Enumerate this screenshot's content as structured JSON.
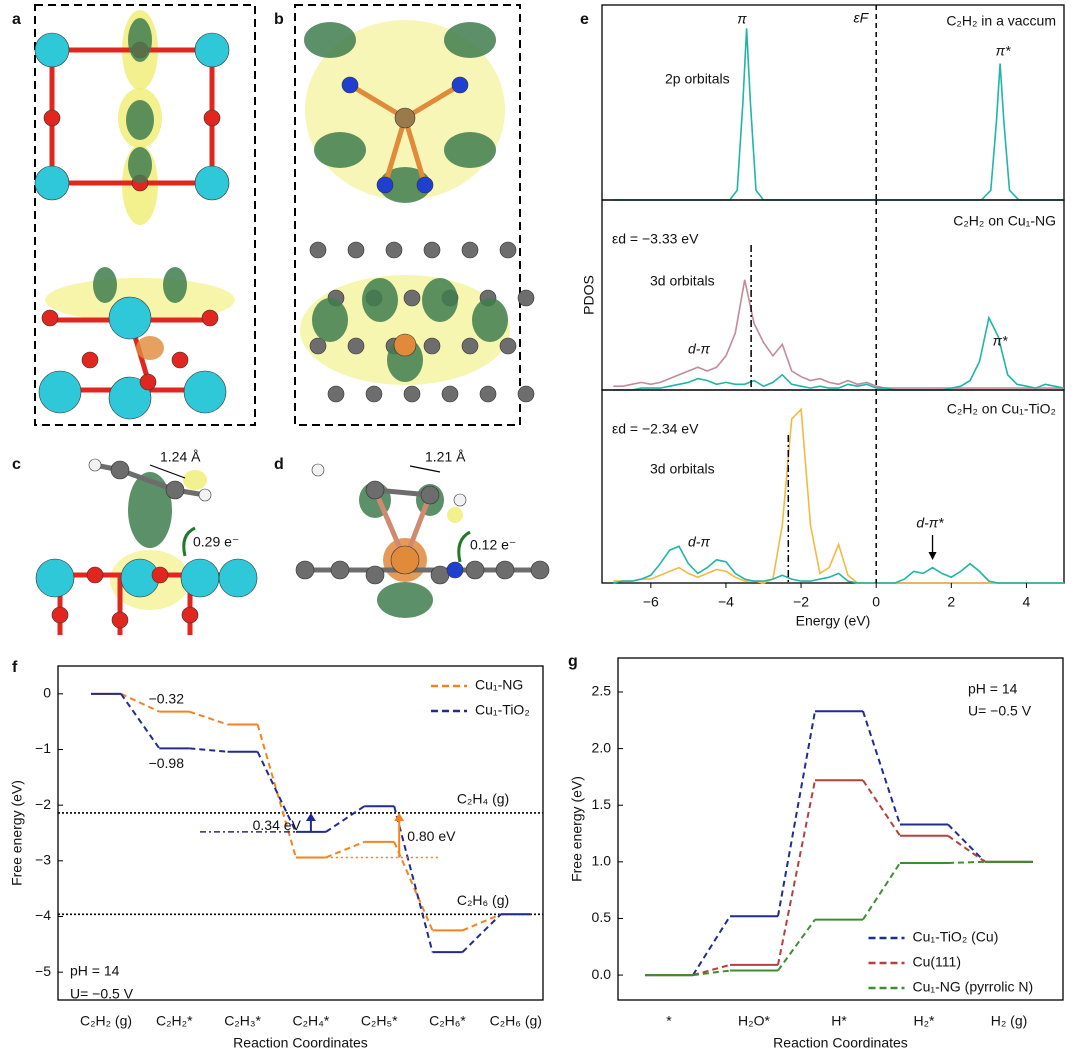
{
  "panel_labels": [
    "a",
    "b",
    "c",
    "d",
    "e",
    "f",
    "g"
  ],
  "structure_annotations": {
    "c_bond": "1.24 Å",
    "c_charge": "0.29 e⁻",
    "d_bond": "1.21 Å",
    "d_charge": "0.12 e⁻"
  },
  "chart_data": [
    {
      "type": "line",
      "xlim": [
        -7.3,
        5
      ],
      "ylim": [
        0,
        1
      ],
      "x": [
        -7,
        -3.9,
        -3.7,
        -3.55,
        -3.45,
        -3.35,
        -3.2,
        -3.0,
        2.8,
        3.05,
        3.2,
        3.3,
        3.4,
        3.55,
        3.8,
        5
      ],
      "series": [
        {
          "color": "#1fb5a8",
          "values": [
            0,
            0,
            0.05,
            0.5,
            0.88,
            0.5,
            0.05,
            0,
            0,
            0.05,
            0.4,
            0.7,
            0.4,
            0.05,
            0,
            0
          ]
        }
      ],
      "vlines": [
        {
          "x": 0,
          "style": "dashed",
          "label": "εF"
        }
      ],
      "annotations": [
        "π",
        "2p orbitals",
        "C₂H₂ in a vaccum",
        "π*"
      ]
    },
    {
      "type": "line",
      "xlim": [
        -7.3,
        5
      ],
      "ylim": [
        0,
        1
      ],
      "ylabel": "PDOS",
      "x": [
        -7,
        -6.75,
        -6.5,
        -6.25,
        -6,
        -5.75,
        -5.5,
        -5.25,
        -5,
        -4.75,
        -4.5,
        -4.25,
        -4,
        -3.75,
        -3.5,
        -3.25,
        -3,
        -2.75,
        -2.5,
        -2.25,
        -2,
        -1.75,
        -1.5,
        -1.25,
        -1,
        -0.75,
        -0.5,
        -0.25,
        0,
        0.25,
        0.5,
        0.75,
        1,
        1.25,
        1.5,
        1.75,
        2,
        2.25,
        2.5,
        2.75,
        3,
        3.25,
        3.5,
        3.75,
        4,
        4.25,
        4.5,
        4.75,
        5
      ],
      "series": [
        {
          "color": "#c48a9a",
          "values": [
            0.02,
            0.02,
            0.03,
            0.04,
            0.03,
            0.04,
            0.06,
            0.08,
            0.1,
            0.12,
            0.1,
            0.12,
            0.18,
            0.3,
            0.58,
            0.35,
            0.25,
            0.18,
            0.24,
            0.1,
            0.07,
            0.05,
            0.06,
            0.04,
            0.03,
            0.05,
            0.03,
            0.04,
            0.02,
            0.01,
            0.01,
            0.01,
            0.01,
            0.01,
            0.01,
            0.01,
            0.01,
            0.01,
            0.01,
            0.01,
            0.01,
            0.01,
            0.01,
            0.01,
            0.01,
            0.01,
            0.01,
            0.01,
            0.01
          ]
        },
        {
          "color": "#1fb5a8",
          "values": [
            0,
            0,
            0,
            0.01,
            0.01,
            0.01,
            0.02,
            0.03,
            0.04,
            0.06,
            0.05,
            0.03,
            0.04,
            0.03,
            0.03,
            0.05,
            0.02,
            0.04,
            0.08,
            0.03,
            0.02,
            0.01,
            0.02,
            0.01,
            0.01,
            0.03,
            0.02,
            0.03,
            0.01,
            0.01,
            0,
            0,
            0,
            0,
            0,
            0,
            0.01,
            0.02,
            0.05,
            0.15,
            0.38,
            0.28,
            0.08,
            0.03,
            0.02,
            0.01,
            0.03,
            0.02,
            0.01
          ]
        }
      ],
      "vlines": [
        {
          "x": -3.33,
          "style": "dashdot"
        },
        {
          "x": 0,
          "style": "dashed"
        }
      ],
      "annotations": [
        "C₂H₂ on Cu₁-NG",
        "εd = −3.33 eV",
        "3d orbitals",
        "d-π",
        "π*"
      ]
    },
    {
      "type": "line",
      "xlim": [
        -7.3,
        5
      ],
      "ylim": [
        0,
        1
      ],
      "xlabel": "Energy (eV)",
      "xticks": [
        {
          "value": -6,
          "label": "−6"
        },
        {
          "value": -4,
          "label": "−4"
        },
        {
          "value": -2,
          "label": "−2"
        },
        0,
        2,
        4
      ],
      "x": [
        -7,
        -6.75,
        -6.5,
        -6.25,
        -6,
        -5.75,
        -5.5,
        -5.25,
        -5,
        -4.75,
        -4.5,
        -4.25,
        -4,
        -3.75,
        -3.5,
        -3.25,
        -3,
        -2.75,
        -2.5,
        -2.25,
        -2,
        -1.75,
        -1.5,
        -1.25,
        -1,
        -0.75,
        -0.5,
        -0.25,
        0,
        0.25,
        0.5,
        0.75,
        1,
        1.25,
        1.5,
        1.75,
        2,
        2.25,
        2.5,
        2.75,
        3,
        3.25,
        3.5,
        3.75,
        4,
        4.25,
        4.5,
        4.75,
        5
      ],
      "series": [
        {
          "color": "#f5b942",
          "values": [
            0.01,
            0.01,
            0.01,
            0.02,
            0.02,
            0.04,
            0.06,
            0.08,
            0.05,
            0.03,
            0.05,
            0.07,
            0.06,
            0.03,
            0.01,
            0.01,
            0,
            0.02,
            0.3,
            0.85,
            0.9,
            0.3,
            0.05,
            0.08,
            0.2,
            0.04,
            0,
            0,
            0,
            0,
            0,
            0,
            0,
            0,
            0,
            0,
            0,
            0,
            0,
            0,
            0,
            0,
            0,
            0,
            0,
            0,
            0,
            0,
            0
          ]
        },
        {
          "color": "#1fb5a8",
          "values": [
            0,
            0.01,
            0.01,
            0.02,
            0.04,
            0.1,
            0.17,
            0.19,
            0.1,
            0.05,
            0.08,
            0.12,
            0.11,
            0.05,
            0.02,
            0.01,
            0.01,
            0.02,
            0.04,
            0.02,
            0.01,
            0.01,
            0.02,
            0.03,
            0.05,
            0.01,
            0,
            0,
            0,
            0,
            0,
            0.02,
            0.06,
            0.05,
            0.08,
            0.05,
            0.03,
            0.06,
            0.1,
            0.06,
            0.01,
            0,
            0,
            0,
            0,
            0,
            0,
            0,
            0
          ]
        }
      ],
      "vlines": [
        {
          "x": -2.34,
          "style": "dashdot"
        },
        {
          "x": 0,
          "style": "dashed"
        }
      ],
      "annotations": [
        "C₂H₂ on Cu₁-TiO₂",
        "εd = −2.34 eV",
        "3d orbitals",
        "d-π",
        "d-π*"
      ]
    },
    {
      "type": "step",
      "xlabel": "Reaction Coordinates",
      "ylabel": "Free energy (eV)",
      "categories": [
        "C₂H₂ (g)",
        "C₂H₂*",
        "C₂H₃*",
        "C₂H₄*",
        "C₂H₅*",
        "C₂H₆*",
        "C₂H₆ (g)"
      ],
      "ylim": [
        -5.5,
        0.5
      ],
      "yticks": [
        0,
        {
          "value": -1,
          "label": "−1"
        },
        {
          "value": -2,
          "label": "−2"
        },
        {
          "value": -3,
          "label": "−3"
        },
        {
          "value": -4,
          "label": "−4"
        },
        {
          "value": -5,
          "label": "−5"
        }
      ],
      "series": [
        {
          "name": "Cu₁-NG",
          "color": "#f5821f",
          "values": [
            0,
            -0.32,
            -0.55,
            -2.94,
            -2.66,
            -4.25,
            -3.96
          ],
          "value_labels": [
            null,
            "−0.32",
            null,
            null,
            null,
            null,
            null
          ]
        },
        {
          "name": "Cu₁-TiO₂",
          "color": "#1f2d8f",
          "values": [
            0,
            -0.98,
            -1.04,
            -2.48,
            -2.02,
            -4.64,
            -3.96
          ],
          "value_labels": [
            null,
            "−0.98",
            null,
            null,
            null,
            null,
            null
          ]
        }
      ],
      "hlines": [
        {
          "y": -2.14,
          "label": "C₂H₄ (g)"
        },
        {
          "y": -3.96,
          "label": "C₂H₆ (g)"
        }
      ],
      "gaps": [
        {
          "label": "0.34 eV",
          "color": "#1f2d8f"
        },
        {
          "label": "0.80 eV",
          "color": "#f5821f"
        }
      ],
      "annotations": [
        "pH = 14",
        "U= −0.5 V"
      ],
      "legend": "upper right"
    },
    {
      "type": "step",
      "xlabel": "Reaction Coordinates",
      "ylabel": "Free energy (eV)",
      "categories": [
        "*",
        "H₂O*",
        "H*",
        "H₂*",
        "H₂ (g)"
      ],
      "ylim": [
        -0.22,
        2.8
      ],
      "yticks": [
        {
          "value": 0,
          "label": "0.0"
        },
        0.5,
        {
          "value": 1,
          "label": "1.0"
        },
        1.5,
        {
          "value": 2,
          "label": "2.0"
        },
        2.5
      ],
      "series": [
        {
          "name": "Cu₁-TiO₂ (Cu)",
          "color": "#1f2d8f",
          "values": [
            0,
            0.52,
            2.33,
            1.33,
            1.0
          ]
        },
        {
          "name": "Cu(111)",
          "color": "#b5403c",
          "values": [
            0,
            0.09,
            1.72,
            1.23,
            1.0
          ]
        },
        {
          "name": "Cu₁-NG (pyrrolic N)",
          "color": "#3c8f2e",
          "values": [
            0,
            0.04,
            0.49,
            0.99,
            1.0
          ]
        }
      ],
      "annotations": [
        "pH = 14",
        "U= −0.5 V"
      ],
      "legend": "lower right"
    }
  ]
}
